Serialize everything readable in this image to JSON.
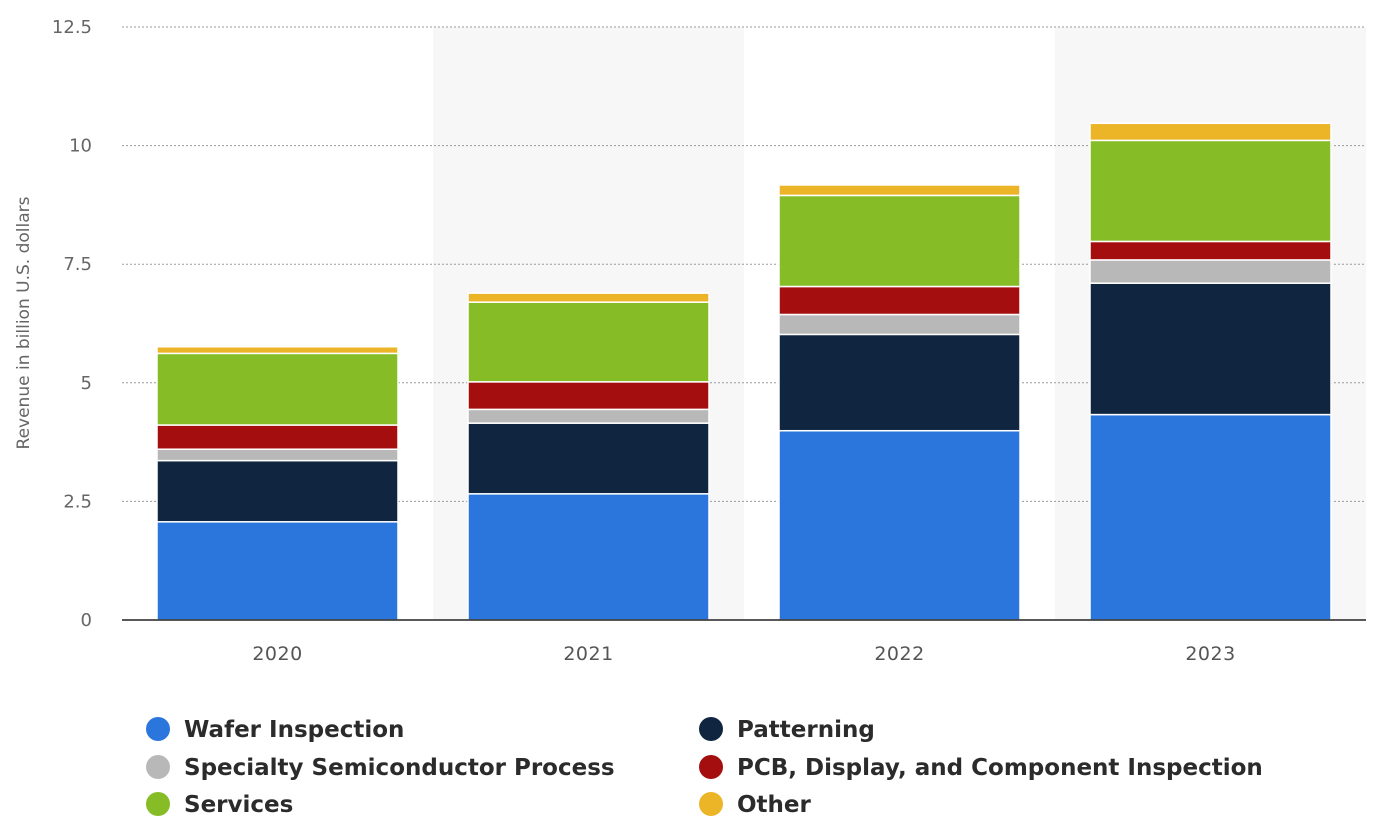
{
  "chart_data": {
    "type": "bar",
    "stacked": true,
    "categories": [
      "2020",
      "2021",
      "2022",
      "2023"
    ],
    "series": [
      {
        "name": "Wafer Inspection",
        "color": "#2a76dd",
        "values": [
          2.07,
          2.66,
          3.99,
          4.33
        ]
      },
      {
        "name": "Patterning",
        "color": "#10253f",
        "values": [
          1.29,
          1.49,
          2.03,
          2.77
        ]
      },
      {
        "name": "Specialty Semiconductor Process",
        "color": "#b8b8b8",
        "values": [
          0.24,
          0.29,
          0.42,
          0.49
        ]
      },
      {
        "name": "PCB, Display, and Component Inspection",
        "color": "#a50e0e",
        "values": [
          0.51,
          0.58,
          0.59,
          0.39
        ]
      },
      {
        "name": "Services",
        "color": "#86bc25",
        "values": [
          1.51,
          1.68,
          1.92,
          2.13
        ]
      },
      {
        "name": "Other",
        "color": "#ecb527",
        "values": [
          0.14,
          0.19,
          0.22,
          0.36
        ]
      }
    ],
    "ylabel": "Revenue in billion U.S. dollars",
    "xlabel": "",
    "ylim": [
      0,
      12.5
    ],
    "yticks": [
      0,
      2.5,
      5,
      7.5,
      10,
      12.5
    ],
    "ytick_labels": [
      "0",
      "2.5",
      "5",
      "7.5",
      "10",
      "12.5"
    ],
    "grid": true,
    "legend_position": "bottom"
  }
}
